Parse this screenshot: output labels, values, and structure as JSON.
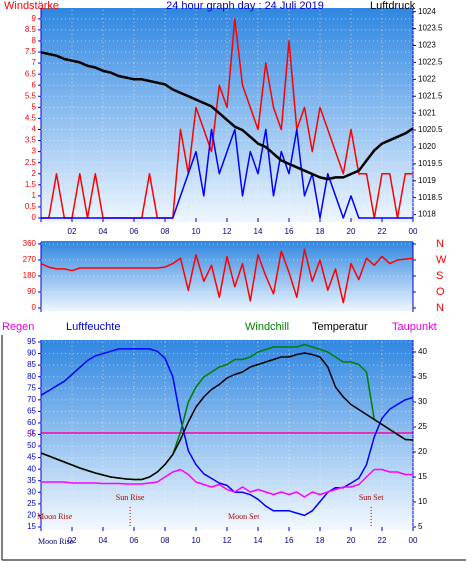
{
  "chart_data": [
    {
      "type": "line",
      "title": "24 hour graph day : 24 Juli 2019",
      "x": [
        0,
        0.5,
        1,
        1.5,
        2,
        2.5,
        3,
        3.5,
        4,
        4.5,
        5,
        5.5,
        6,
        6.5,
        7,
        7.5,
        8,
        8.5,
        9,
        9.5,
        10,
        10.5,
        11,
        11.5,
        12,
        12.5,
        13,
        13.5,
        14,
        14.5,
        15,
        15.5,
        16,
        16.5,
        17,
        17.5,
        18,
        18.5,
        19,
        19.5,
        20,
        20.5,
        21,
        21.5,
        22,
        22.5,
        23,
        23.5,
        24
      ],
      "xlim": [
        0,
        24
      ],
      "xticks": [
        {
          "value": 2,
          "label": "02"
        },
        {
          "value": 4,
          "label": "04"
        },
        {
          "value": 6,
          "label": "06"
        },
        {
          "value": 8,
          "label": "08"
        },
        10,
        12,
        14,
        16,
        18,
        20,
        22,
        {
          "value": 24,
          "label": "00"
        }
      ],
      "ylim": [
        0,
        9.4
      ],
      "yticks": [
        0,
        0.5,
        1,
        1.5,
        2,
        2.5,
        3,
        3.5,
        4,
        4.5,
        5,
        5.5,
        6,
        6.5,
        7,
        7.5,
        8,
        8.5,
        9
      ],
      "y2lim": [
        1017.9,
        1024.05
      ],
      "y2ticks": [
        1018,
        1018.5,
        1019,
        1019.5,
        1020,
        1020.5,
        1021,
        1021.5,
        1022,
        1022.5,
        1023,
        1023.5,
        1024
      ],
      "grid": true,
      "series": [
        {
          "name": "Windstärke",
          "color": "#ff0000",
          "values": [
            0,
            0,
            2,
            0,
            0,
            2,
            0,
            2,
            0,
            0,
            0,
            0,
            0,
            0,
            2,
            0,
            0,
            0,
            4,
            2,
            5,
            4,
            3,
            6,
            5,
            9,
            6,
            5,
            4,
            7,
            5,
            4,
            8,
            4,
            5,
            3,
            5,
            4,
            3,
            2,
            4,
            2,
            2,
            0,
            2,
            2,
            0,
            2,
            2
          ]
        },
        {
          "color": "#0000ff",
          "values": [
            0,
            0,
            0,
            0,
            0,
            0,
            0,
            0,
            0,
            0,
            0,
            0,
            0,
            0,
            0,
            0,
            0,
            0,
            1,
            2,
            3,
            1,
            4,
            2,
            3,
            4,
            1,
            3,
            2,
            4,
            1,
            3,
            2,
            4,
            1,
            2,
            0,
            2,
            1,
            0,
            1,
            0,
            0,
            0,
            0,
            0,
            0,
            0,
            0
          ]
        },
        {
          "name": "Luftdruck",
          "color": "#000000",
          "axis": "y2",
          "values": [
            1022.8,
            1022.75,
            1022.7,
            1022.6,
            1022.55,
            1022.5,
            1022.4,
            1022.35,
            1022.25,
            1022.2,
            1022.1,
            1022.05,
            1022.0,
            1022.0,
            1021.95,
            1021.9,
            1021.85,
            1021.7,
            1021.6,
            1021.5,
            1021.4,
            1021.3,
            1021.2,
            1021.0,
            1020.8,
            1020.6,
            1020.5,
            1020.3,
            1020.1,
            1020.0,
            1019.8,
            1019.6,
            1019.5,
            1019.4,
            1019.3,
            1019.2,
            1019.1,
            1019.05,
            1019.1,
            1019.1,
            1019.2,
            1019.3,
            1019.6,
            1019.9,
            1020.1,
            1020.2,
            1020.3,
            1020.4,
            1020.55
          ]
        }
      ]
    },
    {
      "type": "line",
      "x": [
        0,
        0.5,
        1,
        1.5,
        2,
        2.5,
        3,
        3.5,
        4,
        4.5,
        5,
        5.5,
        6,
        6.5,
        7,
        7.5,
        8,
        8.5,
        9,
        9.5,
        10,
        10.5,
        11,
        11.5,
        12,
        12.5,
        13,
        13.5,
        14,
        14.5,
        15,
        15.5,
        16,
        16.5,
        17,
        17.5,
        18,
        18.5,
        19,
        19.5,
        20,
        20.5,
        21,
        21.5,
        22,
        22.5,
        23,
        23.5,
        24
      ],
      "xlim": [
        0,
        24
      ],
      "ylim": [
        0,
        360
      ],
      "yticks": [
        0,
        90,
        180,
        270,
        360
      ],
      "y2lim": [
        0,
        360
      ],
      "y2ticks": [
        {
          "value": 360,
          "label": "N"
        },
        {
          "value": 270,
          "label": "W"
        },
        {
          "value": 180,
          "label": "S"
        },
        {
          "value": 90,
          "label": "O"
        },
        {
          "value": 0,
          "label": "N"
        }
      ],
      "grid": true,
      "series": [
        {
          "color": "#ff0000",
          "values": [
            250,
            230,
            220,
            220,
            210,
            225,
            225,
            225,
            225,
            225,
            225,
            225,
            225,
            225,
            225,
            225,
            230,
            250,
            280,
            100,
            300,
            150,
            240,
            60,
            290,
            120,
            250,
            40,
            300,
            180,
            80,
            320,
            200,
            60,
            330,
            150,
            270,
            100,
            220,
            30,
            250,
            160,
            280,
            240,
            290,
            250,
            270,
            275,
            280
          ]
        }
      ]
    },
    {
      "type": "line",
      "rain_label": "Regen",
      "x": [
        0,
        0.5,
        1,
        1.5,
        2,
        2.5,
        3,
        3.5,
        4,
        4.5,
        5,
        5.5,
        6,
        6.5,
        7,
        7.5,
        8,
        8.5,
        9,
        9.5,
        10,
        10.5,
        11,
        11.5,
        12,
        12.5,
        13,
        13.5,
        14,
        14.5,
        15,
        15.5,
        16,
        16.5,
        17,
        17.5,
        18,
        18.5,
        19,
        19.5,
        20,
        20.5,
        21,
        21.5,
        22,
        22.5,
        23,
        23.5,
        24
      ],
      "xlim": [
        0,
        24
      ],
      "xticks": [
        {
          "value": 2,
          "label": "02"
        },
        {
          "value": 4,
          "label": "04"
        },
        {
          "value": 6,
          "label": "06"
        },
        {
          "value": 8,
          "label": "08"
        },
        10,
        12,
        14,
        16,
        18,
        20,
        22,
        {
          "value": 24,
          "label": "00"
        }
      ],
      "ylim": [
        15,
        95
      ],
      "yticks": [
        15,
        20,
        25,
        30,
        35,
        40,
        45,
        50,
        55,
        60,
        65,
        70,
        75,
        80,
        85,
        90,
        95
      ],
      "y2lim": [
        5,
        42
      ],
      "y2ticks": [
        5,
        10,
        15,
        20,
        25,
        30,
        35,
        40
      ],
      "grid": true,
      "zero_label": "0",
      "events": [
        {
          "label": "Sun Rise",
          "hour": 5.75
        },
        {
          "label": "Sun Set",
          "hour": 21.3
        }
      ],
      "moon_labels": [
        "Moon Rise",
        "Moon Set",
        "Moon Rise"
      ],
      "series": [
        {
          "name": "Luftfeuchte",
          "color": "#0000ff",
          "values": [
            72,
            74,
            76,
            78,
            81,
            84,
            87,
            89,
            90,
            91,
            92,
            92,
            92,
            92,
            92,
            91,
            88,
            80,
            62,
            48,
            42,
            38,
            36,
            34,
            33,
            30,
            30,
            29,
            27,
            24,
            22,
            22,
            22,
            21,
            20,
            22,
            26,
            30,
            32,
            32,
            34,
            36,
            42,
            54,
            62,
            66,
            68,
            70,
            71
          ]
        },
        {
          "name": "Windchill",
          "color": "#008000",
          "axis": "y2",
          "values": [
            19.8,
            19.2,
            18.6,
            18,
            17.4,
            16.8,
            16.3,
            15.8,
            15.4,
            15,
            14.8,
            14.6,
            14.5,
            14.5,
            15,
            16,
            17.5,
            19.5,
            24,
            30,
            33,
            35,
            36,
            37,
            37.5,
            38.5,
            38.5,
            39,
            40,
            40.5,
            41,
            41,
            41,
            41,
            41.5,
            41,
            40.5,
            40,
            39,
            38,
            38,
            37.5,
            36,
            26.5,
            25.5,
            24.5,
            23.5,
            22.5,
            22.4
          ]
        },
        {
          "name": "Temperatur",
          "color": "#000000",
          "axis": "y2",
          "values": [
            19.8,
            19.2,
            18.6,
            18,
            17.4,
            16.8,
            16.3,
            15.8,
            15.4,
            15,
            14.8,
            14.6,
            14.5,
            14.5,
            15,
            16,
            17.5,
            19.5,
            22.5,
            26,
            29,
            31,
            32.5,
            33.5,
            34.8,
            35.5,
            36,
            37,
            37.5,
            38,
            38.5,
            39,
            39,
            39.5,
            39.8,
            39.5,
            39,
            37,
            33,
            31,
            29.5,
            28.5,
            27.5,
            26.5,
            25.5,
            24.5,
            23.5,
            22.5,
            22.4
          ]
        },
        {
          "name": "Taupunkt",
          "color": "#ff00ff",
          "axis": "y2",
          "values": [
            14,
            14,
            14,
            14,
            13.8,
            13.8,
            13.8,
            13.8,
            13.7,
            13.7,
            13.7,
            13.6,
            13.6,
            13.6,
            13.8,
            14,
            15,
            16,
            16.5,
            15.5,
            14,
            13.5,
            13,
            13.5,
            12.5,
            12,
            13,
            12,
            12.5,
            12,
            11.5,
            12,
            11.5,
            12,
            11,
            12,
            11.5,
            12,
            12.5,
            13,
            13,
            13.5,
            15,
            16.5,
            16.5,
            16,
            16,
            15.5,
            15.5
          ]
        }
      ]
    }
  ]
}
